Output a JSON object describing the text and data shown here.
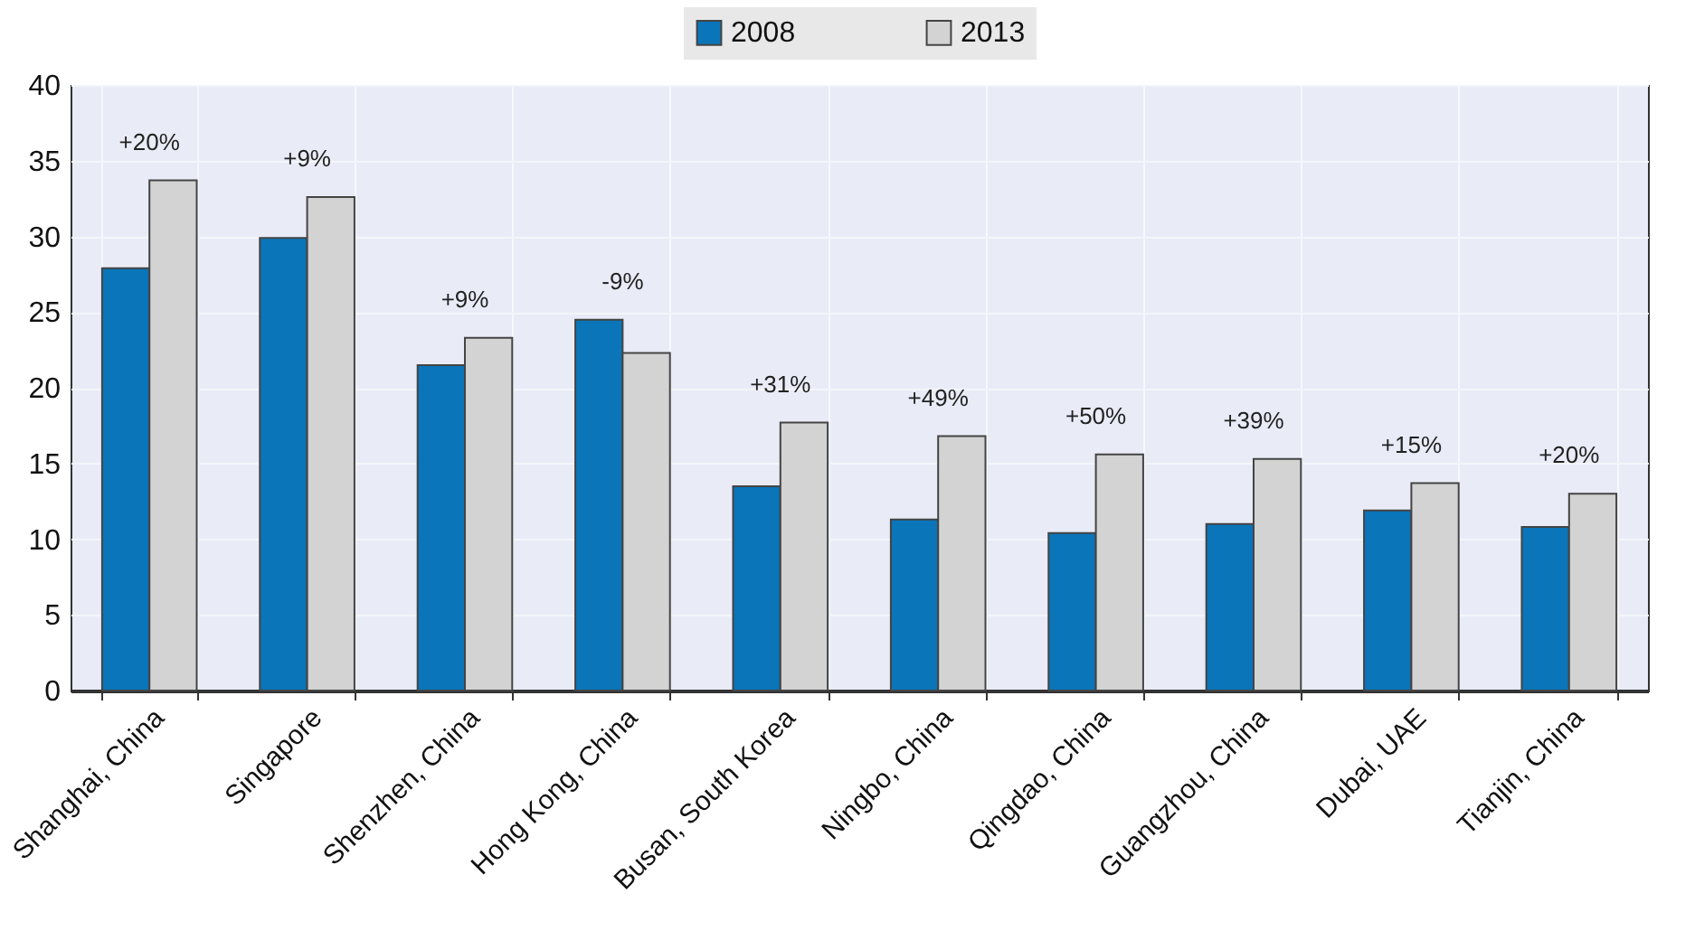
{
  "chart_data": {
    "type": "bar",
    "categories": [
      "Shanghai, China",
      "Singapore",
      "Shenzhen, China",
      "Hong Kong, China",
      "Busan, South Korea",
      "Ningbo, China",
      "Qingdao, China",
      "Guangzhou, China",
      "Dubai, UAE",
      "Tianjin, China"
    ],
    "series": [
      {
        "name": "2008",
        "color": "#0a75b9",
        "values": [
          27.9,
          29.9,
          21.5,
          24.5,
          13.5,
          11.3,
          10.4,
          11.0,
          11.9,
          10.8
        ]
      },
      {
        "name": "2013",
        "color": "#d3d3d3",
        "values": [
          33.7,
          32.6,
          23.3,
          22.3,
          17.7,
          16.8,
          15.6,
          15.3,
          13.7,
          13.0
        ]
      }
    ],
    "annotations": [
      {
        "text": "+20%",
        "x": "Shanghai, China",
        "y": 33.7
      },
      {
        "text": "+9%",
        "x": "Singapore",
        "y": 32.6
      },
      {
        "text": "+9%",
        "x": "Shenzhen, China",
        "y": 23.3
      },
      {
        "text": "-9%",
        "x": "Hong Kong, China",
        "y": 22.3
      },
      {
        "text": "+31%",
        "x": "Busan, South Korea",
        "y": 17.7
      },
      {
        "text": "+49%",
        "x": "Ningbo, China",
        "y": 16.8
      },
      {
        "text": "+50%",
        "x": "Qingdao, China",
        "y": 15.6
      },
      {
        "text": "+39%",
        "x": "Guangzhou, China",
        "y": 15.3
      },
      {
        "text": "+15%",
        "x": "Dubai, UAE",
        "y": 13.7
      },
      {
        "text": "+20%",
        "x": "Tianjin, China",
        "y": 13.0
      }
    ],
    "ylim": [
      0,
      40
    ],
    "yticks": [
      0,
      5,
      10,
      15,
      20,
      25,
      30,
      35,
      40
    ],
    "grid": true,
    "legend": "top"
  }
}
